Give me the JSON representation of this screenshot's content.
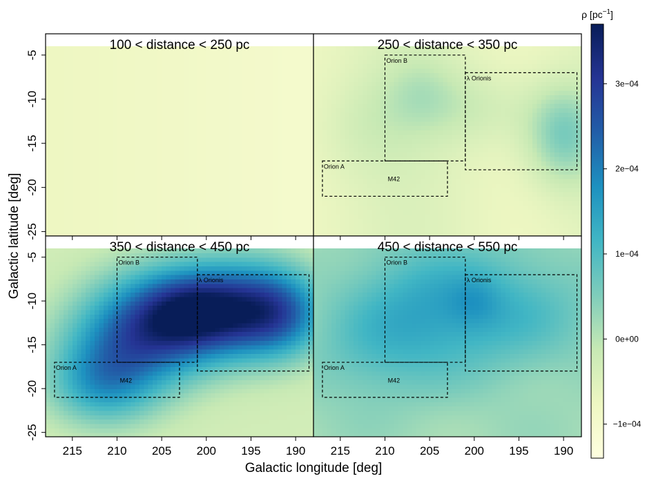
{
  "chart_data": {
    "type": "heatmap",
    "xlabel": "Galactic longitude [deg]",
    "ylabel": "Galactic latitude [deg]",
    "xlim": [
      218,
      188
    ],
    "ylim": [
      -25.5,
      -4
    ],
    "x_ticks": [
      215,
      210,
      205,
      200,
      195,
      190
    ],
    "y_ticks": [
      -5,
      -10,
      -15,
      -20,
      -25
    ],
    "x_tick_labels": [
      "215",
      "210",
      "205",
      "200",
      "195",
      "190"
    ],
    "y_tick_labels": [
      "-5",
      "-10",
      "-15",
      "-20",
      "-25"
    ],
    "colorbar": {
      "title": "ρ [pc",
      "title_sup": "−1",
      "title_end": "]",
      "ticks": [
        -0.0001,
        0,
        0.0001,
        0.0002,
        0.0003
      ],
      "tick_labels": [
        "−1e−04",
        "0e+00",
        "1e−04",
        "2e−04",
        "3e−04"
      ],
      "range": [
        -0.00014,
        0.00037
      ],
      "colors": [
        "#ffffe0",
        "#eef7c2",
        "#c7e9b4",
        "#7fcdbb",
        "#41b6c4",
        "#1d91c0",
        "#225ea8",
        "#253494",
        "#081d58"
      ]
    },
    "panels": [
      {
        "title": "100 < distance < 250 pc",
        "show_regions": false,
        "blobs": []
      },
      {
        "title": "250 < distance < 350 pc",
        "show_regions": true,
        "blobs": [
          {
            "l": 190,
            "b": -14,
            "sl": 3,
            "sb": 4,
            "rho": 0.00012
          },
          {
            "l": 200,
            "b": -11,
            "sl": 5,
            "sb": 3,
            "rho": 4e-05
          },
          {
            "l": 206,
            "b": -9,
            "sl": 3,
            "sb": 3,
            "rho": 4e-05
          },
          {
            "l": 212,
            "b": -13,
            "sl": 4,
            "sb": 4,
            "rho": 3e-05
          }
        ]
      },
      {
        "title": "350 < distance < 450 pc",
        "show_regions": true,
        "blobs": [
          {
            "l": 204,
            "b": -12,
            "sl": 6,
            "sb": 4,
            "rho": 0.00029
          },
          {
            "l": 201,
            "b": -11,
            "sl": 4,
            "sb": 3,
            "rho": 0.00012
          },
          {
            "l": 192,
            "b": -11.5,
            "sl": 4,
            "sb": 3.5,
            "rho": 0.00022
          },
          {
            "l": 196,
            "b": -10,
            "sl": 5,
            "sb": 4,
            "rho": 0.00012
          },
          {
            "l": 210,
            "b": -17,
            "sl": 5,
            "sb": 4,
            "rho": 0.00016
          },
          {
            "l": 212,
            "b": -20,
            "sl": 4,
            "sb": 3,
            "rho": 9e-05
          }
        ]
      },
      {
        "title": "450 < distance < 550 pc",
        "show_regions": true,
        "blobs": [
          {
            "l": 198,
            "b": -11,
            "sl": 8,
            "sb": 5,
            "rho": 9e-05
          },
          {
            "l": 207,
            "b": -11,
            "sl": 6,
            "sb": 5,
            "rho": 7e-05
          },
          {
            "l": 212,
            "b": -17,
            "sl": 5,
            "sb": 4,
            "rho": 4e-05
          },
          {
            "l": 200,
            "b": -10,
            "sl": 2,
            "sb": 2,
            "rho": 4e-05
          }
        ]
      }
    ],
    "regions": [
      {
        "name": "Orion B",
        "l_min": 201,
        "l_max": 210,
        "b_min": -17,
        "b_max": -5
      },
      {
        "name": "λ Orionis",
        "l_min": 188.5,
        "l_max": 201,
        "b_min": -18,
        "b_max": -7
      },
      {
        "name": "Orion A",
        "l_min": 203,
        "l_max": 217,
        "b_min": -21,
        "b_max": -17
      },
      {
        "name": "M42",
        "l_min": null,
        "l_max": null,
        "b_min": null,
        "b_max": null,
        "label_only": true,
        "l": 209,
        "b": -19.3
      }
    ]
  }
}
